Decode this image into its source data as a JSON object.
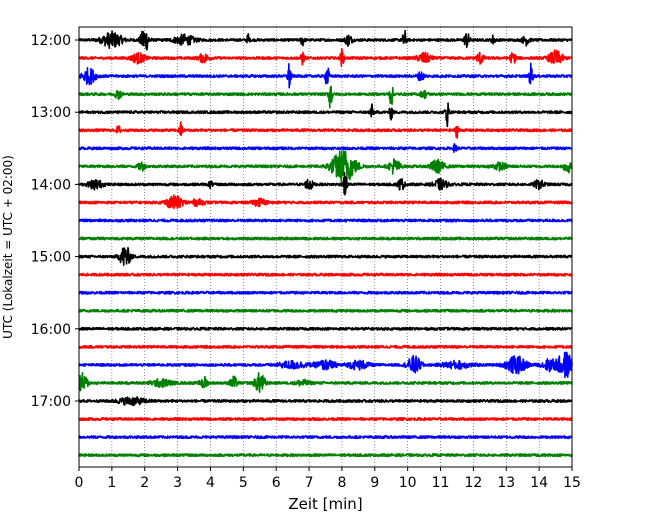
{
  "chart_data": {
    "type": "line",
    "title": "",
    "xlabel": "Zeit  [min]",
    "ylabel": "UTC (Lokalzeit = UTC + 02:00)",
    "xlim": [
      0,
      15
    ],
    "x_ticks": [
      0,
      1,
      2,
      3,
      4,
      5,
      6,
      7,
      8,
      9,
      10,
      11,
      12,
      13,
      14,
      15
    ],
    "x_tick_labels": [
      "0",
      "1",
      "2",
      "3",
      "4",
      "5",
      "6",
      "7",
      "8",
      "9",
      "10",
      "11",
      "12",
      "13",
      "14",
      "15"
    ],
    "y_tick_labels": [
      "12:00",
      "13:00",
      "14:00",
      "15:00",
      "16:00",
      "17:00"
    ],
    "traces_per_hour": 4,
    "trace_colors": [
      "#000000",
      "#ff0000",
      "#0000ff",
      "#008000"
    ],
    "grid_x": true,
    "grid_style": "dotted",
    "trace_starts": [
      "12:00",
      "12:15",
      "12:30",
      "12:45",
      "13:00",
      "13:15",
      "13:30",
      "13:45",
      "14:00",
      "14:15",
      "14:30",
      "14:45",
      "15:00",
      "15:15",
      "15:30",
      "15:45",
      "16:00",
      "16:15",
      "16:30",
      "16:45",
      "17:00",
      "17:15",
      "17:30",
      "17:45"
    ],
    "events": [
      [
        [
          1.0,
          0.3,
          0.55
        ],
        [
          2.0,
          0.12,
          0.9
        ],
        [
          3.2,
          0.3,
          0.35
        ],
        [
          5.15,
          0.03,
          0.6
        ],
        [
          6.8,
          0.05,
          0.45
        ],
        [
          8.2,
          0.1,
          0.4
        ],
        [
          9.9,
          0.05,
          0.75
        ],
        [
          11.8,
          0.08,
          0.55
        ],
        [
          12.6,
          0.05,
          0.35
        ],
        [
          13.6,
          0.1,
          0.35
        ]
      ],
      [
        [
          1.8,
          0.2,
          0.35
        ],
        [
          3.8,
          0.15,
          0.3
        ],
        [
          6.8,
          0.05,
          0.5
        ],
        [
          8.0,
          0.05,
          0.65
        ],
        [
          10.5,
          0.2,
          0.35
        ],
        [
          12.2,
          0.1,
          0.4
        ],
        [
          13.2,
          0.1,
          0.35
        ],
        [
          14.5,
          0.2,
          0.5
        ]
      ],
      [
        [
          0.3,
          0.2,
          0.55
        ],
        [
          6.4,
          0.05,
          1.0
        ],
        [
          7.55,
          0.05,
          0.95
        ],
        [
          10.4,
          0.1,
          0.3
        ],
        [
          13.75,
          0.05,
          0.9
        ]
      ],
      [
        [
          1.2,
          0.1,
          0.3
        ],
        [
          7.65,
          0.05,
          1.2
        ],
        [
          9.5,
          0.05,
          0.9
        ],
        [
          10.5,
          0.1,
          0.25
        ]
      ],
      [
        [
          8.9,
          0.05,
          0.55
        ],
        [
          9.5,
          0.05,
          0.5
        ],
        [
          11.2,
          0.05,
          1.0
        ]
      ],
      [
        [
          1.2,
          0.05,
          0.35
        ],
        [
          3.1,
          0.05,
          0.55
        ],
        [
          11.5,
          0.05,
          0.5
        ]
      ],
      [
        [
          11.45,
          0.05,
          0.35
        ]
      ],
      [
        [
          1.9,
          0.1,
          0.3
        ],
        [
          8.05,
          0.35,
          1.2
        ],
        [
          9.6,
          0.15,
          0.55
        ],
        [
          10.9,
          0.2,
          0.45
        ],
        [
          12.8,
          0.2,
          0.25
        ],
        [
          14.85,
          0.1,
          0.5
        ]
      ],
      [
        [
          0.5,
          0.2,
          0.35
        ],
        [
          4.0,
          0.05,
          0.3
        ],
        [
          7.0,
          0.1,
          0.45
        ],
        [
          8.1,
          0.05,
          0.9
        ],
        [
          9.8,
          0.1,
          0.4
        ],
        [
          11.0,
          0.2,
          0.35
        ],
        [
          14.0,
          0.15,
          0.3
        ]
      ],
      [
        [
          2.9,
          0.25,
          0.45
        ],
        [
          3.6,
          0.2,
          0.2
        ],
        [
          5.5,
          0.2,
          0.25
        ]
      ],
      [],
      [],
      [
        [
          1.4,
          0.15,
          0.8
        ]
      ],
      [],
      [],
      [],
      [],
      [],
      [
        [
          6.5,
          0.4,
          0.25
        ],
        [
          7.5,
          0.3,
          0.3
        ],
        [
          8.5,
          0.3,
          0.3
        ],
        [
          10.2,
          0.2,
          0.6
        ],
        [
          11.5,
          0.4,
          0.25
        ],
        [
          13.3,
          0.3,
          0.6
        ],
        [
          14.8,
          0.25,
          0.9
        ],
        [
          14.3,
          0.2,
          0.4
        ]
      ],
      [
        [
          0.1,
          0.15,
          0.65
        ],
        [
          2.5,
          0.3,
          0.25
        ],
        [
          3.8,
          0.1,
          0.45
        ],
        [
          4.7,
          0.1,
          0.45
        ],
        [
          5.5,
          0.15,
          0.7
        ],
        [
          6.8,
          0.2,
          0.2
        ]
      ],
      [
        [
          1.6,
          0.4,
          0.25
        ]
      ],
      [],
      [],
      []
    ]
  }
}
